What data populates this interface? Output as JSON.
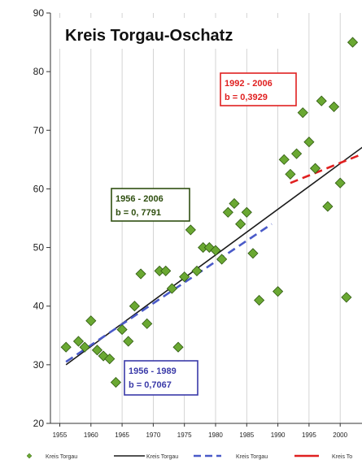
{
  "chart_data": {
    "type": "scatter",
    "title": "Kreis Torgau-Oschatz",
    "xlabel": "",
    "ylabel": "",
    "xlim": [
      1953.5,
      2003.5
    ],
    "ylim": [
      20,
      90
    ],
    "x_ticks": [
      1955,
      1960,
      1965,
      1970,
      1975,
      1980,
      1985,
      1990,
      1995,
      2000,
      2005
    ],
    "y_ticks": [
      20,
      30,
      40,
      50,
      60,
      70,
      80,
      90
    ],
    "grid": {
      "x": true,
      "y": false
    },
    "colors": {
      "points": "#6aa832",
      "points_edge": "#2f5a10",
      "trend_1956_2006": "#1a1a1a",
      "trend_1956_1989": "#4a5ac8",
      "trend_1992_2006": "#e02020",
      "box_1956_2006": "#2f4f10",
      "box_1956_1989": "#3a3aa8",
      "box_1992_2006": "#e02020"
    },
    "series": [
      {
        "name": "Kreis Torgau",
        "kind": "points",
        "points": [
          [
            1956,
            33
          ],
          [
            1958,
            34
          ],
          [
            1959,
            33
          ],
          [
            1960,
            37.5
          ],
          [
            1961,
            32.5
          ],
          [
            1962,
            31.5
          ],
          [
            1963,
            31
          ],
          [
            1964,
            27
          ],
          [
            1965,
            36
          ],
          [
            1966,
            34
          ],
          [
            1967,
            40
          ],
          [
            1968,
            45.5
          ],
          [
            1969,
            37
          ],
          [
            1971,
            46
          ],
          [
            1972,
            46
          ],
          [
            1973,
            43
          ],
          [
            1974,
            33
          ],
          [
            1975,
            45
          ],
          [
            1976,
            53
          ],
          [
            1977,
            46
          ],
          [
            1978,
            50
          ],
          [
            1979,
            50
          ],
          [
            1980,
            49.5
          ],
          [
            1981,
            48
          ],
          [
            1982,
            56
          ],
          [
            1983,
            57.5
          ],
          [
            1984,
            54
          ],
          [
            1985,
            56
          ],
          [
            1986,
            49
          ],
          [
            1987,
            41
          ],
          [
            1990,
            42.5
          ],
          [
            1991,
            65
          ],
          [
            1992,
            62.5
          ],
          [
            1993,
            66
          ],
          [
            1994,
            73
          ],
          [
            1995,
            68
          ],
          [
            1996,
            63.5
          ],
          [
            1997,
            75
          ],
          [
            1998,
            57
          ],
          [
            1999,
            74
          ],
          [
            2000,
            61
          ],
          [
            2001,
            41.5
          ],
          [
            2002,
            85
          ]
        ]
      },
      {
        "name": "Kreis Torgau",
        "kind": "trend",
        "x": [
          1956,
          2006
        ],
        "y": [
          30,
          69
        ]
      },
      {
        "name": "Kreis Torgau",
        "kind": "trend",
        "x": [
          1956,
          1989
        ],
        "y": [
          30.5,
          54
        ]
      },
      {
        "name": "Kreis Torgau",
        "kind": "trend",
        "x": [
          1992,
          2006
        ],
        "y": [
          61,
          67
        ]
      }
    ],
    "annotations": [
      {
        "id": "1992_2006",
        "line1": "1992 - 2006",
        "line2": "b = 0,3929"
      },
      {
        "id": "1956_2006",
        "line1": "1956 - 2006",
        "line2": "b = 0, 7791"
      },
      {
        "id": "1956_1989",
        "line1": "1956 - 1989",
        "line2": "b = 0,7067"
      }
    ],
    "legend": {
      "placement": "bottom",
      "entries": [
        "Kreis Torgau",
        "Kreis Torgau",
        "Kreis Torgau",
        "Kreis To"
      ]
    }
  }
}
